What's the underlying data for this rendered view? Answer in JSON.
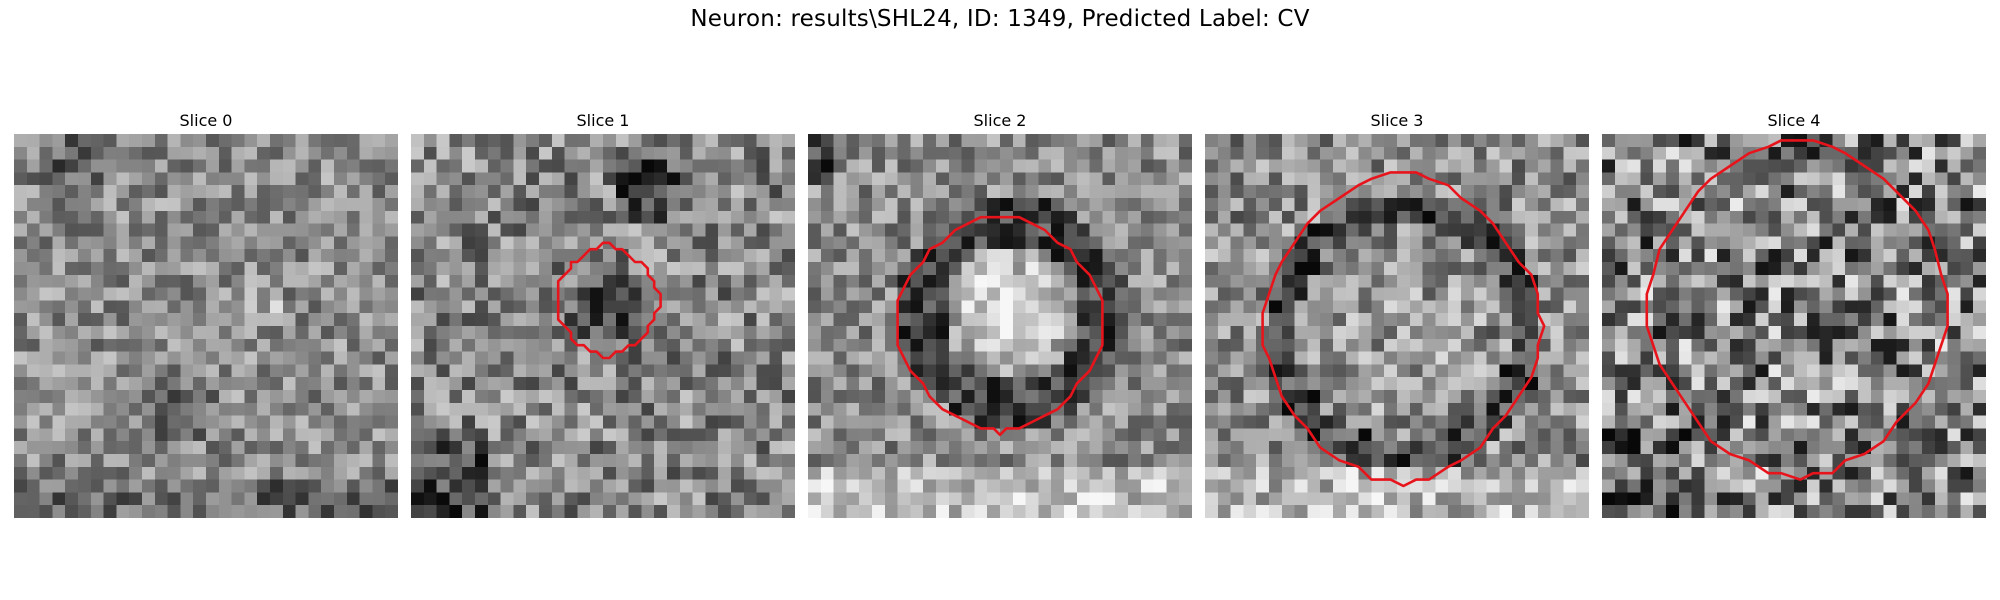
{
  "figure": {
    "suptitle": "Neuron: results\\SHL24, ID: 1349, Predicted Label: CV",
    "contour_color": "#e8141c",
    "colormap": "gray",
    "grid_size": 30
  },
  "slices": [
    {
      "title": "Slice 0",
      "has_contour": false,
      "center_brightness": "medium"
    },
    {
      "title": "Slice 1",
      "has_contour": true,
      "center_brightness": "dark"
    },
    {
      "title": "Slice 2",
      "has_contour": true,
      "center_brightness": "bright-ring-dark"
    },
    {
      "title": "Slice 3",
      "has_contour": true,
      "center_brightness": "ring-dark"
    },
    {
      "title": "Slice 4",
      "has_contour": true,
      "center_brightness": "noisy"
    }
  ]
}
